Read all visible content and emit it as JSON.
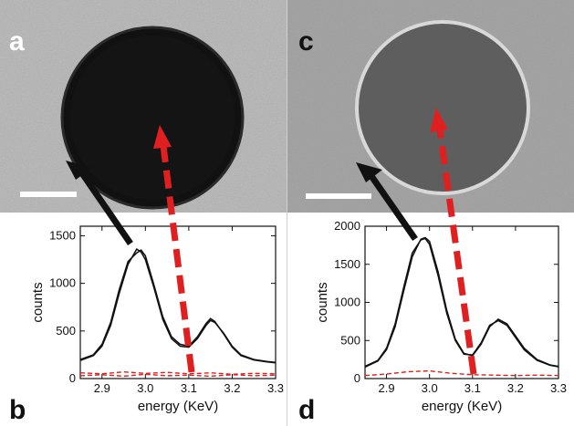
{
  "panel_labels": {
    "a": "a",
    "b": "b",
    "c": "c",
    "d": "d"
  },
  "colors": {
    "spectrum_line": "#111111",
    "reference_line": "#e02020",
    "arrow_black": "#111111",
    "arrow_red": "#e02020",
    "scale_bar": "#ffffff"
  },
  "chart_data": [
    {
      "type": "line",
      "panel": "b",
      "xlabel": "energy (KeV)",
      "ylabel": "counts",
      "xlim": [
        2.85,
        3.3
      ],
      "ylim": [
        0,
        1600
      ],
      "xticks": [
        "2.9",
        "3.0",
        "3.1",
        "3.2",
        "3.3"
      ],
      "yticks": [
        "0",
        "500",
        "1000",
        "1500"
      ],
      "series": [
        {
          "style": "solid-black",
          "x": [
            2.85,
            2.88,
            2.9,
            2.92,
            2.94,
            2.96,
            2.98,
            2.99,
            3.0,
            3.02,
            3.04,
            3.06,
            3.08,
            3.1,
            3.12,
            3.14,
            3.15,
            3.16,
            3.18,
            3.2,
            3.22,
            3.25,
            3.28,
            3.3
          ],
          "y": [
            190,
            240,
            340,
            560,
            900,
            1200,
            1360,
            1330,
            1250,
            950,
            620,
            420,
            340,
            330,
            420,
            560,
            610,
            590,
            480,
            340,
            250,
            200,
            180,
            170
          ]
        },
        {
          "style": "solid-black",
          "x": [
            2.85,
            2.88,
            2.9,
            2.92,
            2.94,
            2.96,
            2.98,
            2.99,
            3.0,
            3.02,
            3.04,
            3.06,
            3.08,
            3.1,
            3.12,
            3.14,
            3.15,
            3.16,
            3.18,
            3.2,
            3.22,
            3.25,
            3.28,
            3.3
          ],
          "y": [
            200,
            250,
            360,
            590,
            940,
            1230,
            1320,
            1350,
            1290,
            980,
            650,
            440,
            360,
            340,
            440,
            580,
            630,
            600,
            470,
            330,
            240,
            195,
            175,
            165
          ]
        },
        {
          "style": "dashed-red",
          "x": [
            2.85,
            2.9,
            2.95,
            3.0,
            3.05,
            3.1,
            3.15,
            3.2,
            3.25,
            3.3
          ],
          "y": [
            60,
            50,
            70,
            55,
            65,
            50,
            60,
            45,
            55,
            50
          ]
        },
        {
          "style": "dashed-red",
          "x": [
            2.85,
            2.9,
            2.95,
            3.0,
            3.05,
            3.1,
            3.15,
            3.2,
            3.25,
            3.3
          ],
          "y": [
            30,
            40,
            25,
            45,
            30,
            35,
            25,
            40,
            30,
            35
          ]
        }
      ]
    },
    {
      "type": "line",
      "panel": "d",
      "xlabel": "energy (KeV)",
      "ylabel": "counts",
      "xlim": [
        2.85,
        3.3
      ],
      "ylim": [
        0,
        2000
      ],
      "xticks": [
        "2.9",
        "3.0",
        "3.1",
        "3.2",
        "3.3"
      ],
      "yticks": [
        "0",
        "500",
        "1000",
        "1500",
        "2000"
      ],
      "series": [
        {
          "style": "solid-black",
          "x": [
            2.85,
            2.88,
            2.9,
            2.92,
            2.94,
            2.96,
            2.98,
            2.99,
            3.0,
            3.02,
            3.04,
            3.06,
            3.08,
            3.1,
            3.12,
            3.14,
            3.16,
            3.18,
            3.2,
            3.22,
            3.25,
            3.28,
            3.3
          ],
          "y": [
            150,
            230,
            380,
            680,
            1150,
            1600,
            1830,
            1850,
            1800,
            1400,
            900,
            520,
            330,
            300,
            450,
            680,
            780,
            720,
            560,
            400,
            250,
            180,
            160
          ]
        },
        {
          "style": "solid-black",
          "x": [
            2.85,
            2.88,
            2.9,
            2.92,
            2.94,
            2.96,
            2.98,
            2.99,
            3.0,
            3.02,
            3.04,
            3.06,
            3.08,
            3.1,
            3.12,
            3.14,
            3.16,
            3.18,
            3.2,
            3.22,
            3.25,
            3.28,
            3.3
          ],
          "y": [
            160,
            240,
            400,
            720,
            1200,
            1650,
            1820,
            1840,
            1760,
            1350,
            860,
            500,
            320,
            310,
            470,
            700,
            760,
            700,
            540,
            380,
            240,
            175,
            155
          ]
        },
        {
          "style": "dashed-red",
          "x": [
            2.85,
            2.9,
            2.95,
            3.0,
            3.05,
            3.1,
            3.15,
            3.2,
            3.25,
            3.3
          ],
          "y": [
            40,
            60,
            90,
            100,
            70,
            50,
            45,
            40,
            45,
            40
          ]
        }
      ]
    }
  ]
}
